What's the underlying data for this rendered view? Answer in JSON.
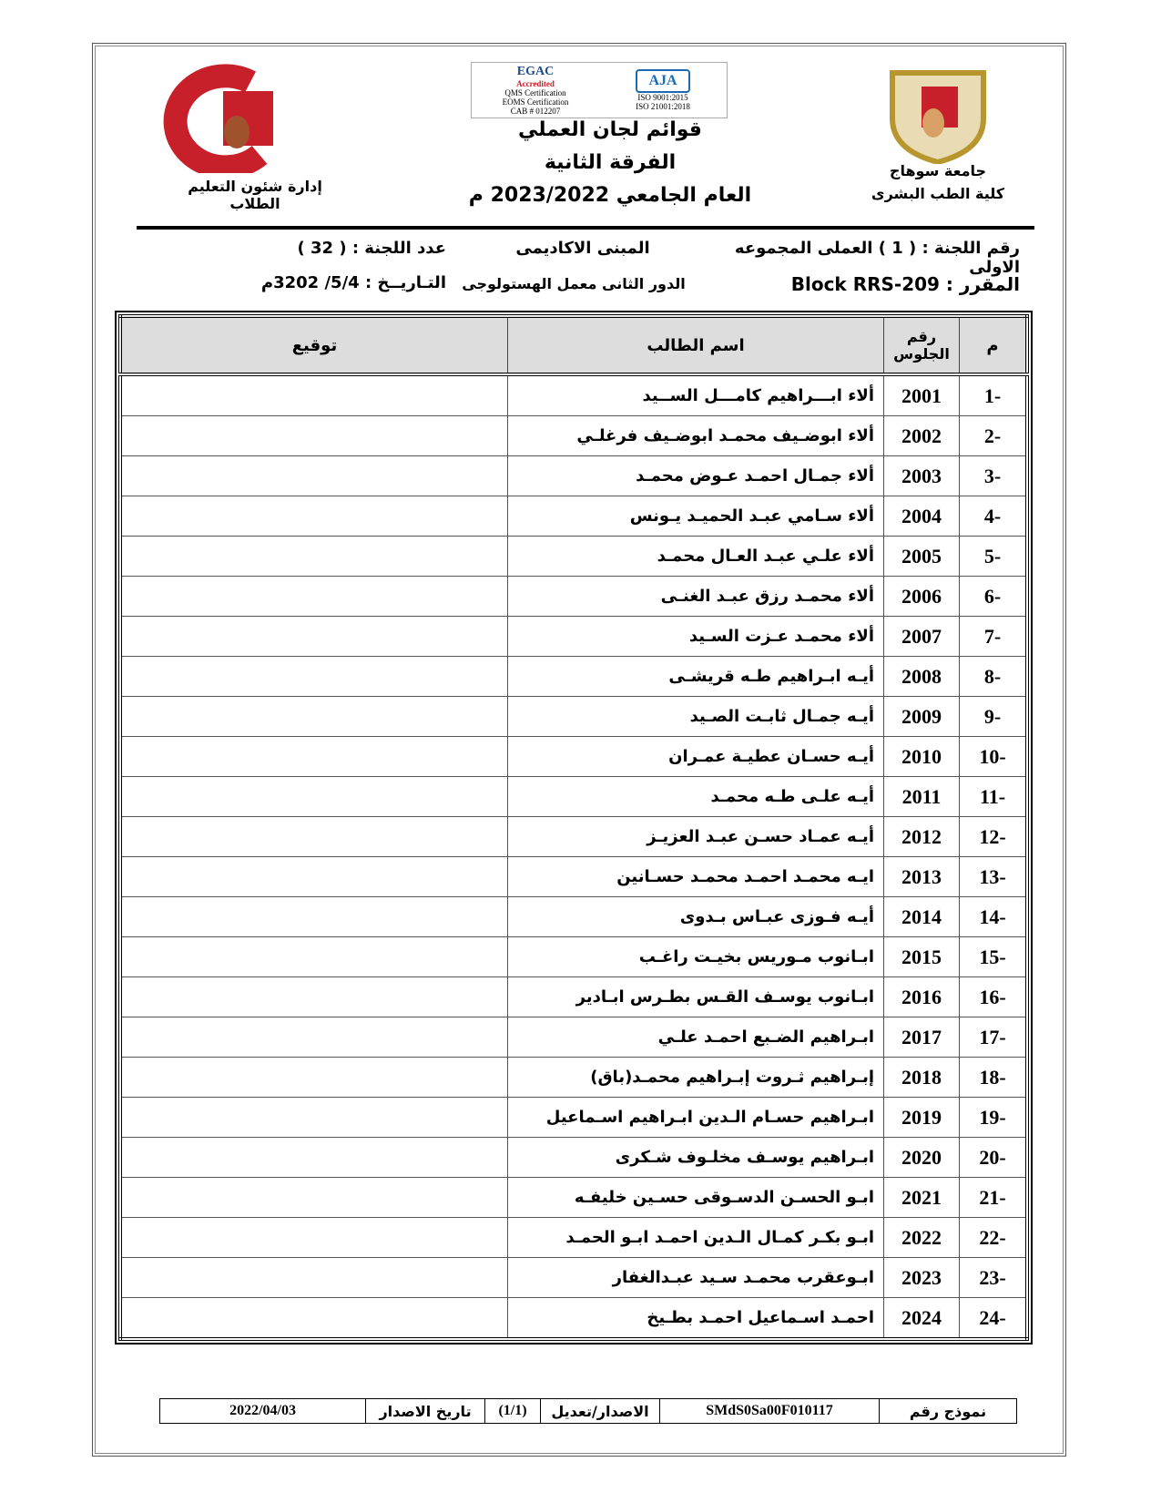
{
  "header": {
    "left_dept": "إدارة شئون التعليم الطلاب",
    "left_logo_text": "جامعة سوهاج كلية الطب",
    "center_title_1": "قوائم لجان العملي",
    "center_title_2": "الفرقة الثانية",
    "center_title_3": "العام الجامعي 2023/2022 م",
    "cert_left": [
      "EGAC",
      "Accredited",
      "QMS Certification",
      "EOMS Certification",
      "CAB # 012207"
    ],
    "cert_right": [
      "AJA",
      "ISO 9001:2015",
      "ISO 21001:2018"
    ],
    "right_univ": "جامعة سوهاج",
    "right_faculty": "كلية الطب البشرى"
  },
  "info": {
    "committee_no": "رقم اللجنة : ( 1 ) العملى المجموعه الاولى",
    "building": "المبنى الاكاديمى",
    "committee_count": "عدد اللجنة : ( 32 )",
    "course": "المقرر : Block RRS-209",
    "session": "الدور الثانى معمل الهستولوجى",
    "date": "التـاريــخ : 5/4/ 3202م"
  },
  "table": {
    "headers": {
      "num": "م",
      "seat": "رقم الجلوس",
      "name": "اسم الطالب",
      "signature": "توقيع"
    },
    "rows": [
      {
        "num": "1-",
        "seat": "2001",
        "name": "ألاء ابـــراهيم كامـــل الســيد"
      },
      {
        "num": "2-",
        "seat": "2002",
        "name": "ألاء ابوضـيف محمـد ابوضـيف فرغلـي"
      },
      {
        "num": "3-",
        "seat": "2003",
        "name": "ألاء جمـال احمـد عـوض محمـد"
      },
      {
        "num": "4-",
        "seat": "2004",
        "name": "ألاء سـامي عبـد الحميـد يـونس"
      },
      {
        "num": "5-",
        "seat": "2005",
        "name": "ألاء علـي عبـد العـال محمـد"
      },
      {
        "num": "6-",
        "seat": "2006",
        "name": "ألاء محمـد رزق عبـد الغنـى"
      },
      {
        "num": "7-",
        "seat": "2007",
        "name": "ألاء محمـد عـزت السـيد"
      },
      {
        "num": "8-",
        "seat": "2008",
        "name": "أيـه ابـراهيم طـه قريشـى"
      },
      {
        "num": "9-",
        "seat": "2009",
        "name": "أيـه جمـال ثابـت الصـيد"
      },
      {
        "num": "10-",
        "seat": "2010",
        "name": "أيـه حسـان عطيـة عمـران"
      },
      {
        "num": "11-",
        "seat": "2011",
        "name": "أيـه علـى طـه محمـد"
      },
      {
        "num": "12-",
        "seat": "2012",
        "name": "أيـه عمـاد حسـن عبـد العزيـز"
      },
      {
        "num": "13-",
        "seat": "2013",
        "name": "ايـه محمـد احمـد محمـد حسـانين"
      },
      {
        "num": "14-",
        "seat": "2014",
        "name": "أيـه فـوزى عبـاس بـدوى"
      },
      {
        "num": "15-",
        "seat": "2015",
        "name": "ابـانوب مـوريس بخيـت راغـب"
      },
      {
        "num": "16-",
        "seat": "2016",
        "name": "ابـانوب يوسـف القـس بطـرس ابـادير"
      },
      {
        "num": "17-",
        "seat": "2017",
        "name": "ابـراهيم الضـبع احمـد علـي"
      },
      {
        "num": "18-",
        "seat": "2018",
        "name": "إبـراهيم ثـروت إبـراهيم محمـد(باق)"
      },
      {
        "num": "19-",
        "seat": "2019",
        "name": "ابـراهيم حسـام الـدين ابـراهيم اسـماعيل"
      },
      {
        "num": "20-",
        "seat": "2020",
        "name": "ابـراهيم يوسـف مخلـوف شـكرى"
      },
      {
        "num": "21-",
        "seat": "2021",
        "name": "ابـو الحسـن الدسـوقى حسـين خليفـه"
      },
      {
        "num": "22-",
        "seat": "2022",
        "name": "ابـو بكـر كمـال الـدين احمـد ابـو الحمـد"
      },
      {
        "num": "23-",
        "seat": "2023",
        "name": "ابـوعقرب محمـد سـيد عبـدالغفار"
      },
      {
        "num": "24-",
        "seat": "2024",
        "name": "احمـد اسـماعيل احمـد بطـيخ"
      }
    ]
  },
  "footer": {
    "form_label": "نموذج رقم",
    "form_no": "SMdS0Sa00F010117",
    "version_label": "الاصدار/تعديل",
    "version": "(1/1)",
    "issue_label": "تاريخ الاصدار",
    "issue_date": "2022/04/03"
  },
  "colors": {
    "logo_red": "#c8202a",
    "logo_gold": "#b8962e",
    "header_bg": "#dddddd"
  }
}
